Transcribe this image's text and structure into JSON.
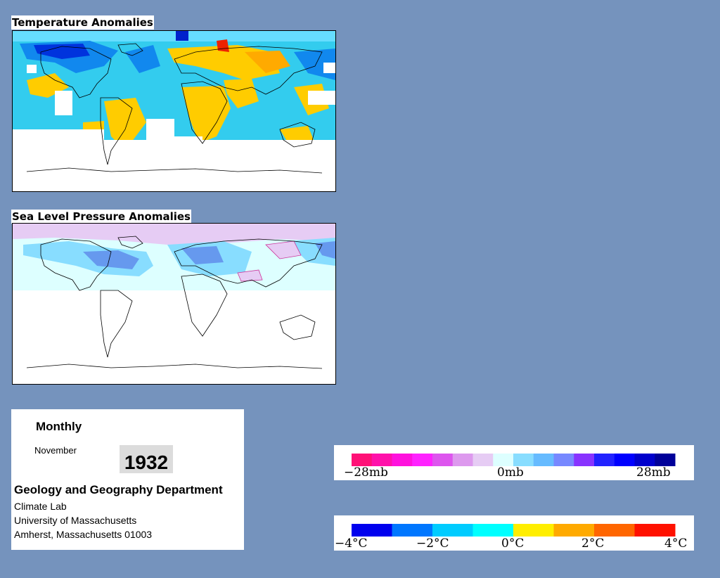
{
  "temperature_panel": {
    "title": "Temperature Anomalies"
  },
  "pressure_panel": {
    "title": "Sea Level Pressure Anomalies"
  },
  "info": {
    "period": "Monthly",
    "month": "November",
    "year": "1932",
    "department": "Geology and Geography Department",
    "lines": [
      "Climate Lab",
      "University of Massachusetts",
      "Amherst, Massachusetts 01003"
    ]
  },
  "pressure_legend": {
    "labels": [
      "−28mb",
      "0mb",
      "28mb"
    ],
    "colors": [
      "#ff1177",
      "#ff11aa",
      "#ff11dd",
      "#ff22ff",
      "#dd55ee",
      "#dd99ee",
      "#e6ccf4",
      "#ddffff",
      "#88ddff",
      "#66bbff",
      "#7788ff",
      "#8833ff",
      "#2222ff",
      "#0000ff",
      "#0000cc",
      "#000099"
    ]
  },
  "temperature_legend": {
    "labels": [
      "−4°C",
      "−2°C",
      "0°C",
      "2°C",
      "4°C"
    ],
    "colors": [
      "#0000ee",
      "#0077ff",
      "#00ccff",
      "#00ffff",
      "#ffee00",
      "#ffaa00",
      "#ff6600",
      "#ff1100"
    ]
  }
}
